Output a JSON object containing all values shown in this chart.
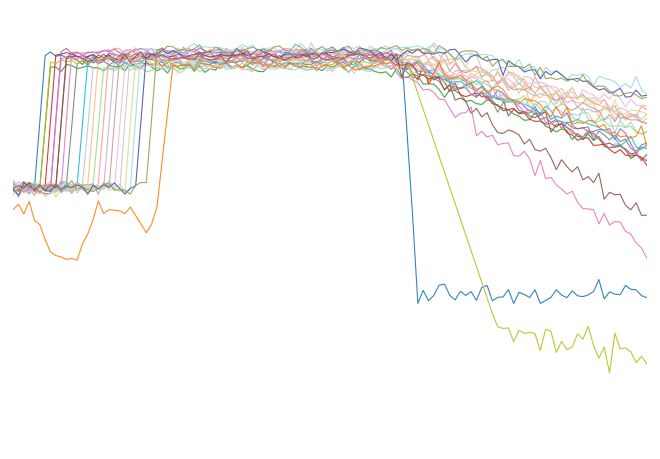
{
  "title": "",
  "background_color": "#ffffff",
  "figsize": [
    6.6,
    4.59
  ],
  "dpi": 100,
  "num_satellites": 22,
  "time_points": 120,
  "colors": [
    "#1f77b4",
    "#ff7f0e",
    "#2ca02c",
    "#d62728",
    "#9467bd",
    "#8c564b",
    "#e377c2",
    "#7f7f7f",
    "#bcbd22",
    "#17becf",
    "#aec7e8",
    "#ffbb78",
    "#98df8a",
    "#ff9896",
    "#c5b0d5",
    "#c49c94",
    "#f7b6d2",
    "#c7c7c7",
    "#dbdb8d",
    "#9edae5",
    "#5254a3",
    "#8ca252"
  ],
  "plateau_alt": 550,
  "low_alt": 350,
  "very_low_alt": 200,
  "noise_scale": 4
}
